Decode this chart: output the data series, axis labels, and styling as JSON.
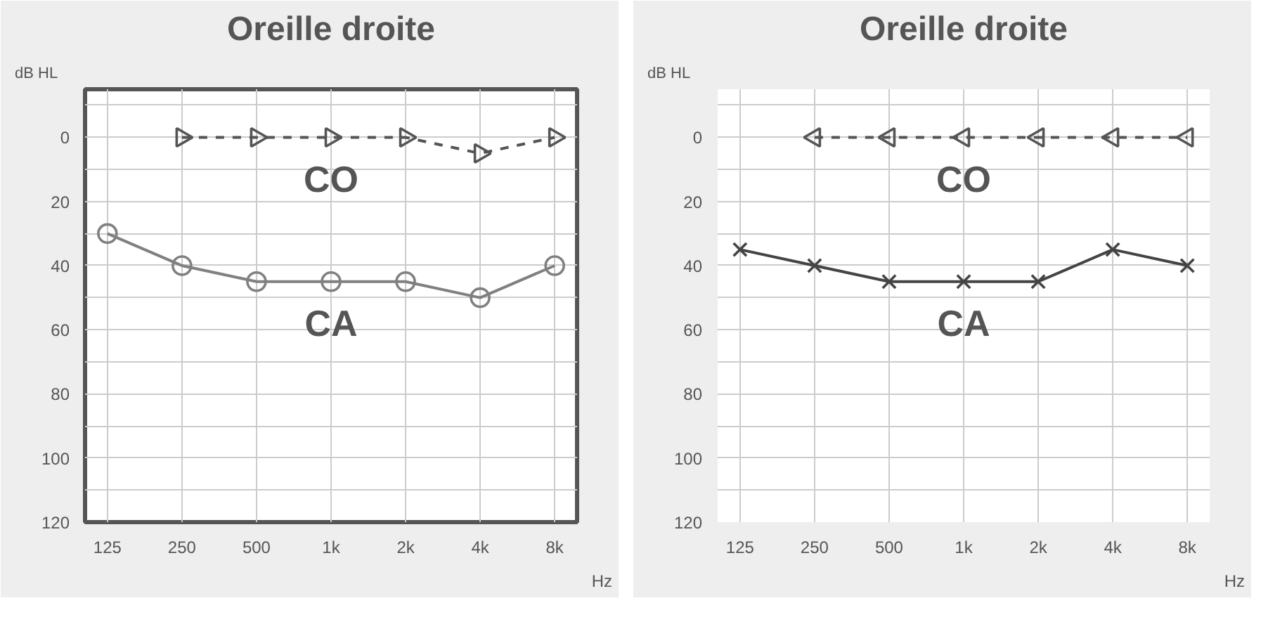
{
  "chart_data": [
    {
      "type": "line",
      "title": "Oreille droite",
      "ylabel": "dB HL",
      "xlabel": "Hz",
      "categories": [
        "125",
        "250",
        "500",
        "1k",
        "2k",
        "4k",
        "8k"
      ],
      "ylim": [
        120,
        -15
      ],
      "yticks": [
        {
          "value": -10,
          "label": null
        },
        0,
        {
          "value": 10,
          "label": null
        },
        20,
        {
          "value": 30,
          "label": null
        },
        40,
        {
          "value": 50,
          "label": null
        },
        60,
        {
          "value": 70,
          "label": null
        },
        80,
        {
          "value": 90,
          "label": null
        },
        100,
        {
          "value": 110,
          "label": null
        },
        120
      ],
      "grid": true,
      "series": [
        {
          "name": "CO",
          "color": "#555555",
          "marker": "triangle",
          "line_style": "dashed",
          "values": [
            null,
            0,
            0,
            0,
            0,
            5,
            0
          ]
        },
        {
          "name": "CA",
          "color": "#808080",
          "marker": "circle",
          "line_style": "solid",
          "values": [
            30,
            40,
            45,
            45,
            45,
            50,
            40
          ]
        }
      ]
    },
    {
      "type": "line",
      "title": "Oreille droite",
      "ylabel": "dB HL",
      "xlabel": "Hz",
      "categories": [
        "125",
        "250",
        "500",
        "1k",
        "2k",
        "4k",
        "8k"
      ],
      "ylim": [
        120,
        -15
      ],
      "yticks": [
        {
          "value": -10,
          "label": null
        },
        0,
        {
          "value": 10,
          "label": null
        },
        20,
        {
          "value": 30,
          "label": null
        },
        40,
        {
          "value": 50,
          "label": null
        },
        60,
        {
          "value": 70,
          "label": null
        },
        80,
        {
          "value": 90,
          "label": null
        },
        100,
        {
          "value": 110,
          "label": null
        },
        120
      ],
      "grid": true,
      "series": [
        {
          "name": "CO",
          "color": "#555555",
          "marker": "triangle",
          "line_style": "dashed",
          "values": [
            null,
            0,
            0,
            0,
            0,
            0,
            0
          ]
        },
        {
          "name": "CA",
          "color": "#444444",
          "marker": "cross",
          "line_style": "solid",
          "values": [
            35,
            40,
            45,
            45,
            45,
            35,
            40
          ]
        }
      ]
    }
  ]
}
